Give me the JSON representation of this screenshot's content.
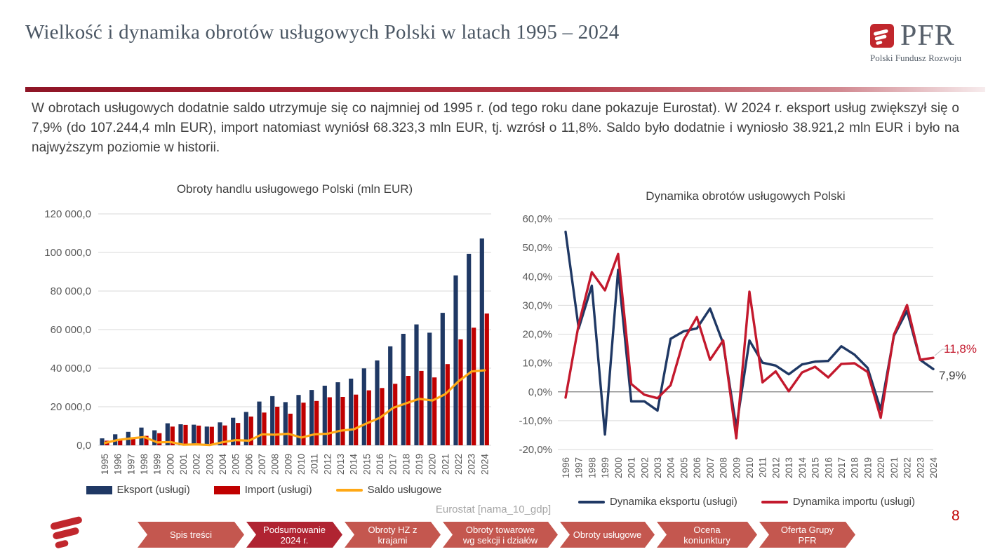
{
  "header": {
    "title": "Wielkość i dynamika obrotów usługowych Polski w latach 1995 – 2024",
    "logo": {
      "brand": "PFR",
      "subtitle": "Polski Fundusz Rozwoju"
    }
  },
  "intro": {
    "text": "W obrotach usługowych dodatnie saldo utrzymuje się co najmniej od 1995 r. (od tego roku dane pokazuje Eurostat). W 2024 r. eksport usług zwiększył się o 7,9% (do 107.244,4 mln EUR), import natomiast wyniósł 68.323,3 mln EUR, tj. wzrósł o 11,8%. Saldo było dodatnie i wyniosło 38.921,2 mln EUR i było na najwyższym poziomie w historii."
  },
  "source": {
    "text": "Eurostat [nama_10_gdp]"
  },
  "page_number": "8",
  "footer_nav": {
    "items": [
      {
        "label": "Spis treści",
        "active": false
      },
      {
        "label": "Podsumowanie\n2024 r.",
        "active": true
      },
      {
        "label": "Obroty HZ z\nkrajami",
        "active": false
      },
      {
        "label": "Obroty towarowe\nwg sekcji i działów",
        "active": false
      },
      {
        "label": "Obroty usługowe",
        "active": false
      },
      {
        "label": "Ocena koniunktury",
        "active": false
      },
      {
        "label": "Oferta Grupy PFR",
        "active": false
      }
    ]
  },
  "chart_data": [
    {
      "type": "bar",
      "title": "Obroty handlu usługowego Polski (mln EUR)",
      "categories": [
        "1995",
        "1996",
        "1997",
        "1998",
        "1999",
        "2000",
        "2001",
        "2002",
        "2003",
        "2004",
        "2005",
        "2006",
        "2007",
        "2008",
        "2009",
        "2010",
        "2011",
        "2012",
        "2013",
        "2014",
        "2015",
        "2016",
        "2017",
        "2018",
        "2019",
        "2020",
        "2021",
        "2022",
        "2023",
        "2024"
      ],
      "ylim": [
        0,
        120000
      ],
      "yticks": [
        {
          "v": 120000,
          "label": "120 000,0"
        },
        {
          "v": 100000,
          "label": "100 000,0"
        },
        {
          "v": 80000,
          "label": "80 000,0"
        },
        {
          "v": 60000,
          "label": "60 000,0"
        },
        {
          "v": 40000,
          "label": "40 000,0"
        },
        {
          "v": 20000,
          "label": "20 000,0"
        },
        {
          "v": 0,
          "label": "0,0"
        }
      ],
      "grid": true,
      "legend_position": "bottom",
      "series": [
        {
          "name": "Eksport (usługi)",
          "kind": "bar",
          "color": "#1F3864",
          "values": [
            3600,
            5700,
            7000,
            9200,
            7800,
            11400,
            10900,
            10700,
            9700,
            11900,
            14300,
            17300,
            22700,
            25500,
            22400,
            26100,
            28700,
            30900,
            32700,
            34600,
            39900,
            44000,
            51300,
            57800,
            62700,
            58400,
            68700,
            88100,
            99300,
            107244.4
          ]
        },
        {
          "name": "Import (usługi)",
          "kind": "bar",
          "color": "#C00000",
          "values": [
            2400,
            2900,
            3400,
            4900,
            6300,
            9700,
            10600,
            10200,
            9600,
            10300,
            11600,
            14900,
            17000,
            20000,
            16400,
            22100,
            23000,
            24900,
            25100,
            26300,
            28500,
            29700,
            31900,
            36000,
            38600,
            35200,
            42100,
            54900,
            61000,
            68323.3
          ]
        },
        {
          "name": "Saldo usługowe",
          "kind": "line",
          "color": "#FFA815",
          "values": [
            1200,
            2800,
            3600,
            4300,
            1500,
            1700,
            300,
            500,
            100,
            1600,
            2700,
            2400,
            5700,
            5500,
            6000,
            4000,
            5700,
            6000,
            7600,
            8300,
            11400,
            14300,
            19400,
            21800,
            24100,
            23200,
            26600,
            33200,
            38300,
            38921.2
          ]
        }
      ]
    },
    {
      "type": "line",
      "title": "Dynamika obrotów usługowych Polski",
      "categories": [
        "1996",
        "1997",
        "1998",
        "1999",
        "2000",
        "2001",
        "2002",
        "2003",
        "2004",
        "2005",
        "2006",
        "2007",
        "2008",
        "2009",
        "2010",
        "2011",
        "2012",
        "2013",
        "2014",
        "2015",
        "2016",
        "2017",
        "2018",
        "2019",
        "2020",
        "2021",
        "2022",
        "2023",
        "2024"
      ],
      "ylim": [
        -20,
        60
      ],
      "yticks": [
        {
          "v": 60,
          "label": "60,0%"
        },
        {
          "v": 50,
          "label": "50,0%"
        },
        {
          "v": 40,
          "label": "40,0%"
        },
        {
          "v": 30,
          "label": "30,0%"
        },
        {
          "v": 20,
          "label": "20,0%"
        },
        {
          "v": 10,
          "label": "10,0%"
        },
        {
          "v": 0,
          "label": "0,0%"
        },
        {
          "v": -10,
          "label": "-10,0%"
        },
        {
          "v": -20,
          "label": "-20,0%"
        }
      ],
      "grid": true,
      "legend_position": "bottom",
      "series": [
        {
          "name": "Dynamika eksportu (usługi)",
          "kind": "line",
          "color": "#1F3864",
          "values": [
            55.5,
            22.0,
            36.8,
            -14.8,
            42.3,
            -3.3,
            -3.3,
            -6.5,
            18.4,
            21.0,
            22.0,
            28.9,
            16.8,
            -12.4,
            17.8,
            10.1,
            9.1,
            6.1,
            9.5,
            10.5,
            10.7,
            15.8,
            12.9,
            8.3,
            -6.2,
            19.4,
            28.1,
            11.1,
            7.9
          ]
        },
        {
          "name": "Dynamika importu (usługi)",
          "kind": "line",
          "color": "#C3192D",
          "values": [
            -2.0,
            23.4,
            41.5,
            35.2,
            47.8,
            2.7,
            -1.0,
            -2.2,
            2.3,
            18.0,
            25.9,
            11.1,
            17.8,
            -16.1,
            34.7,
            3.3,
            7.1,
            0.2,
            6.7,
            8.7,
            5.0,
            9.7,
            9.9,
            6.9,
            -9.0,
            19.8,
            30.1,
            11.1,
            11.8
          ]
        }
      ],
      "annotations": [
        {
          "text": "11,8%",
          "color": "#C3192D",
          "series": 1
        },
        {
          "text": "7,9%",
          "color": "#404040",
          "series": 0
        }
      ]
    }
  ]
}
